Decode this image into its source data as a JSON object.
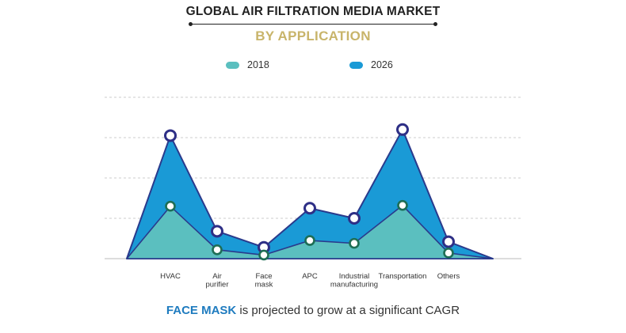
{
  "header": {
    "title": "GLOBAL AIR FILTRATION MEDIA MARKET",
    "subtitle": "BY APPLICATION"
  },
  "footer": {
    "highlight": "FACE MASK",
    "text": " is projected to grow at a significant CAGR"
  },
  "colors": {
    "series_2018": "#5bbfbf",
    "series_2026": "#1a9ad6",
    "marker_2018_ring": "#1e6e55",
    "marker_2026_ring": "#2e2f86",
    "outline": "#2a3a8c",
    "grid": "#cccccc"
  },
  "chart_data": {
    "type": "area",
    "categories": [
      "HVAC",
      "Air purifier",
      "Face mask",
      "APC",
      "Industrial manufacturing",
      "Transportation",
      "Others"
    ],
    "series": [
      {
        "name": "2018",
        "values": [
          1.3,
          0.22,
          0.09,
          0.45,
          0.38,
          1.32,
          0.14
        ]
      },
      {
        "name": "2026",
        "values": [
          3.05,
          0.68,
          0.28,
          1.25,
          1.0,
          3.2,
          0.42
        ]
      }
    ],
    "ylim": [
      0,
      4
    ],
    "grid": true,
    "legend": "top-center"
  }
}
